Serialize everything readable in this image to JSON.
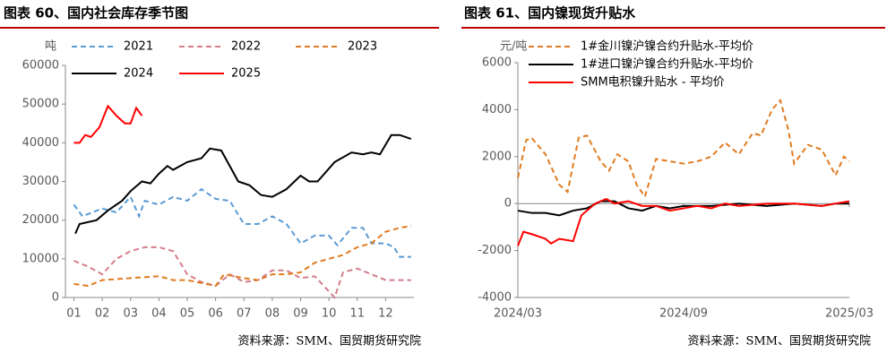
{
  "chart_data": [
    {
      "type": "line",
      "title": "图表 60、国内社会库存季节图",
      "y_label": "吨",
      "source": "资料来源：SMM、国贸期货研究院",
      "xlim": [
        0.7,
        13.0
      ],
      "xticks": [
        {
          "value": 1,
          "label": "01"
        },
        {
          "value": 2,
          "label": "02"
        },
        {
          "value": 3,
          "label": "03"
        },
        {
          "value": 4,
          "label": "04"
        },
        {
          "value": 5,
          "label": "05"
        },
        {
          "value": 6,
          "label": "06"
        },
        {
          "value": 7,
          "label": "07"
        },
        {
          "value": 8,
          "label": "08"
        },
        {
          "value": 9,
          "label": "09"
        },
        {
          "value": 10,
          "label": "10"
        },
        {
          "value": 11,
          "label": "11"
        },
        {
          "value": 12,
          "label": "12"
        }
      ],
      "ylim": [
        0,
        60000
      ],
      "yticks": [
        0,
        10000,
        20000,
        30000,
        40000,
        50000,
        60000
      ],
      "series": [
        {
          "name": "2021",
          "color": "#5b9bd5",
          "style": "dashed",
          "x": [
            1,
            1.3,
            2,
            2.5,
            3,
            3.3,
            3.5,
            4,
            4.5,
            5,
            5.5,
            6,
            6.5,
            7,
            7.5,
            8,
            8.5,
            9,
            9.5,
            10,
            10.3,
            10.8,
            11.2,
            11.5,
            12,
            12.3,
            12.5,
            12.9
          ],
          "values": [
            24000,
            21000,
            23000,
            22000,
            26000,
            21000,
            25000,
            24000,
            26000,
            25000,
            28000,
            25500,
            25000,
            19000,
            19000,
            21000,
            19000,
            14000,
            16000,
            16000,
            13500,
            18000,
            18000,
            14000,
            14000,
            13000,
            10500,
            10500
          ]
        },
        {
          "name": "2022",
          "color": "#d47c8a",
          "style": "dashed",
          "x": [
            1,
            1.5,
            2,
            2.5,
            3,
            3.5,
            4,
            4.5,
            5,
            5.5,
            6,
            6.5,
            7,
            7.5,
            8,
            8.5,
            9,
            9.5,
            10.2,
            10.5,
            11,
            11.5,
            12,
            12.9
          ],
          "values": [
            9500,
            8000,
            6000,
            10000,
            12000,
            13000,
            13000,
            12000,
            6000,
            4000,
            3000,
            6000,
            4000,
            4500,
            7000,
            7000,
            5000,
            5500,
            0,
            6500,
            7500,
            6000,
            4500,
            4500
          ]
        },
        {
          "name": "2023",
          "color": "#e07b20",
          "style": "dashed",
          "x": [
            1,
            1.5,
            2,
            3,
            4,
            4.5,
            5,
            6,
            6.3,
            7,
            7.5,
            8,
            8.5,
            9,
            9.5,
            10,
            10.5,
            11,
            11.5,
            12,
            12.5,
            12.9
          ],
          "values": [
            3500,
            3000,
            4500,
            5000,
            5500,
            4500,
            4500,
            3000,
            6000,
            5000,
            4500,
            6000,
            6000,
            6500,
            9000,
            10000,
            11000,
            13000,
            14000,
            17000,
            18000,
            18500
          ]
        },
        {
          "name": "2024",
          "color": "#000000",
          "style": "solid",
          "x": [
            1.05,
            1.2,
            1.8,
            2.2,
            2.7,
            3,
            3.4,
            3.7,
            4,
            4.3,
            4.5,
            5,
            5.5,
            5.8,
            6.2,
            6.5,
            6.8,
            7.2,
            7.6,
            8,
            8.5,
            9,
            9.3,
            9.6,
            10.2,
            10.8,
            11.2,
            11.5,
            11.8,
            12.2,
            12.5,
            12.9
          ],
          "values": [
            16500,
            19000,
            20000,
            22500,
            25000,
            27500,
            30000,
            29500,
            32000,
            34000,
            33000,
            35000,
            36000,
            38500,
            38000,
            34000,
            30000,
            29000,
            26500,
            26000,
            28000,
            31500,
            30000,
            30000,
            35000,
            37500,
            37000,
            37500,
            37000,
            42000,
            42000,
            41000
          ]
        },
        {
          "name": "2025",
          "color": "#ff0000",
          "style": "solid",
          "x": [
            1,
            1.2,
            1.4,
            1.6,
            1.9,
            2.2,
            2.5,
            2.8,
            3.0,
            3.2,
            3.4
          ],
          "values": [
            40000,
            40000,
            42000,
            41500,
            44000,
            49500,
            47000,
            45000,
            45000,
            49000,
            47000
          ]
        }
      ]
    },
    {
      "type": "line",
      "title": "图表 61、国内镍现货升贴水",
      "y_label": "元/吨",
      "source": "资料来源：SMM、国贸期货研究院",
      "xlim": [
        0,
        12
      ],
      "xticks": [
        {
          "value": 0,
          "label": "2024/03"
        },
        {
          "value": 6,
          "label": "2024/09"
        },
        {
          "value": 12,
          "label": "2025/03"
        }
      ],
      "ylim": [
        -4000,
        6000
      ],
      "yticks": [
        -4000,
        -2000,
        0,
        2000,
        4000,
        6000
      ],
      "series": [
        {
          "name": "1#金川镍沪镍合约升贴水-平均价",
          "color": "#e07b20",
          "style": "dashed",
          "x": [
            0,
            0.3,
            0.5,
            1,
            1.5,
            1.8,
            2.2,
            2.5,
            3,
            3.3,
            3.6,
            4,
            4.3,
            4.6,
            5,
            5.5,
            6,
            6.5,
            7,
            7.5,
            8,
            8.5,
            8.8,
            9.2,
            9.5,
            9.8,
            10,
            10.5,
            11,
            11.5,
            11.8,
            12
          ],
          "values": [
            1100,
            2700,
            2800,
            2100,
            800,
            500,
            2800,
            2900,
            1800,
            1400,
            2100,
            1800,
            800,
            300,
            1900,
            1800,
            1700,
            1800,
            2000,
            2600,
            2100,
            3000,
            2900,
            4000,
            4400,
            3100,
            1700,
            2500,
            2300,
            1200,
            2000,
            1800
          ]
        },
        {
          "name": "1#进口镍沪镍合约升贴水-平均价",
          "color": "#000000",
          "style": "solid",
          "x": [
            0,
            0.5,
            1,
            1.5,
            2,
            2.5,
            3,
            3.5,
            4,
            4.5,
            5,
            5.5,
            6,
            7,
            8,
            9,
            10,
            11,
            11.5,
            12
          ],
          "values": [
            -300,
            -400,
            -400,
            -500,
            -300,
            -200,
            100,
            100,
            -200,
            -300,
            -100,
            -200,
            -100,
            -100,
            0,
            -100,
            0,
            -100,
            0,
            0
          ]
        },
        {
          "name": "SMM电积镍升贴水 - 平均价",
          "color": "#ff0000",
          "style": "solid",
          "x": [
            0,
            0.2,
            0.5,
            1,
            1.2,
            1.5,
            2,
            2.3,
            2.8,
            3.2,
            3.5,
            4,
            4.5,
            5,
            5.5,
            6,
            6.5,
            7,
            7.5,
            8,
            9,
            10,
            11,
            11.5,
            12
          ],
          "values": [
            -1800,
            -1200,
            -1300,
            -1500,
            -1700,
            -1500,
            -1600,
            -500,
            0,
            200,
            0,
            100,
            -100,
            -100,
            -300,
            -200,
            -100,
            -200,
            0,
            -100,
            0,
            0,
            -100,
            0,
            100
          ]
        }
      ]
    }
  ]
}
